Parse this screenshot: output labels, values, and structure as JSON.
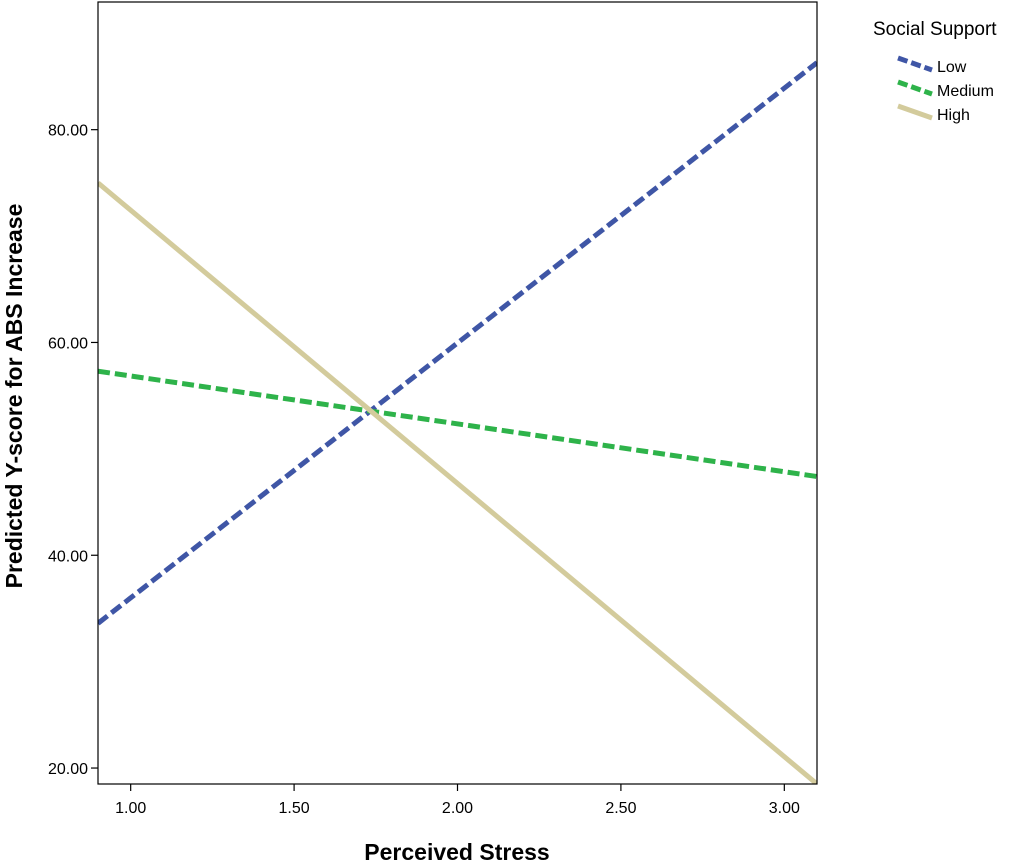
{
  "chart_data": {
    "type": "line",
    "title": "",
    "xlabel": "Perceived Stress",
    "ylabel": "Predicted Y-score for ABS Increase",
    "xlim": [
      0.9,
      3.1
    ],
    "ylim": [
      18.5,
      92
    ],
    "x_ticks": [
      1.0,
      1.5,
      2.0,
      2.5,
      3.0
    ],
    "x_tick_labels": [
      "1.00",
      "1.50",
      "2.00",
      "2.50",
      "3.00"
    ],
    "y_ticks": [
      20,
      40,
      60,
      80
    ],
    "y_tick_labels": [
      "20.00",
      "40.00",
      "60.00",
      "80.00"
    ],
    "grid": false,
    "legend": {
      "title": "Social Support",
      "position": "top-right, outside plot"
    },
    "series": [
      {
        "name": "Low",
        "color": "#3F56A6",
        "style": "dashed",
        "x": [
          0.9,
          3.1
        ],
        "y": [
          33.6,
          86.3
        ]
      },
      {
        "name": "Medium",
        "color": "#2EB34A",
        "style": "dashed",
        "x": [
          0.9,
          3.1
        ],
        "y": [
          57.3,
          47.4
        ]
      },
      {
        "name": "High",
        "color": "#D3CB9C",
        "style": "solid",
        "x": [
          0.9,
          3.1
        ],
        "y": [
          75.0,
          18.5
        ]
      }
    ]
  }
}
